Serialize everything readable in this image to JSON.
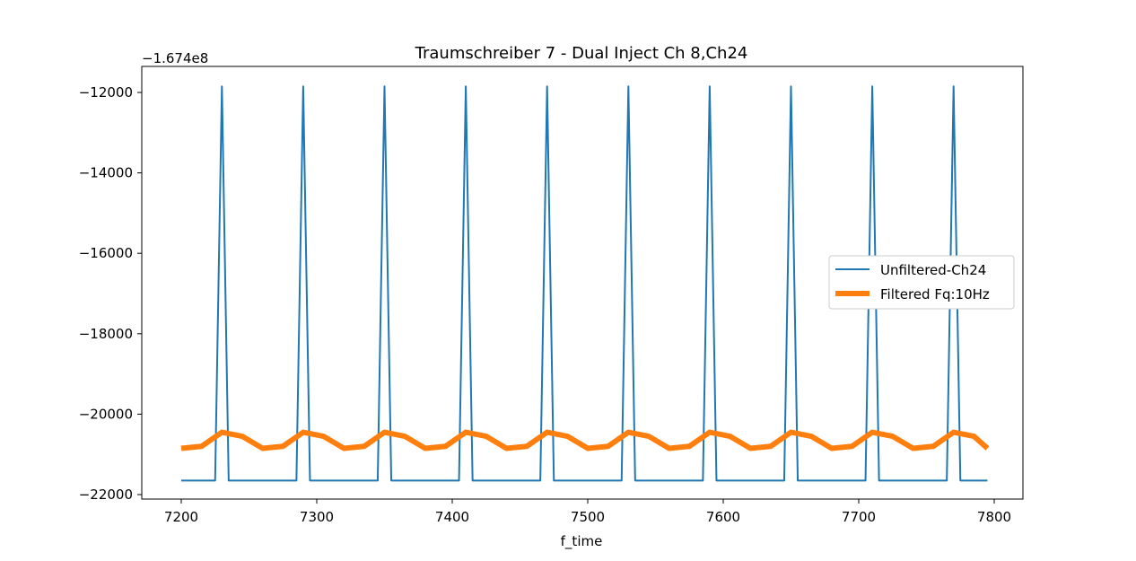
{
  "chart_data": {
    "type": "line",
    "title": "Traumschreiber 7 - Dual Inject Ch 8,Ch24",
    "xlabel": "f_time",
    "ylabel": "",
    "offset_text": "−1.674e8",
    "xlim": [
      7200,
      7800
    ],
    "ylim": [
      -22000,
      -12000
    ],
    "x_ticks": [
      7200,
      7300,
      7400,
      7500,
      7600,
      7700,
      7800
    ],
    "y_ticks": [
      -22000,
      -20000,
      -18000,
      -16000,
      -14000,
      -12000
    ],
    "x_tick_labels": [
      "7200",
      "7300",
      "7400",
      "7500",
      "7600",
      "7700",
      "7800"
    ],
    "y_tick_labels": [
      "−22000",
      "−20000",
      "−18000",
      "−16000",
      "−14000",
      "−12000"
    ],
    "legend_position": "center-right",
    "series": [
      {
        "name": "Unfiltered-Ch24",
        "color": "#1f77b4",
        "style": "thin",
        "x": [
          7200,
          7225,
          7230,
          7235,
          7285,
          7290,
          7295,
          7345,
          7350,
          7355,
          7405,
          7410,
          7415,
          7465,
          7470,
          7475,
          7525,
          7530,
          7535,
          7585,
          7590,
          7595,
          7645,
          7650,
          7655,
          7705,
          7710,
          7715,
          7765,
          7770,
          7775,
          7795
        ],
        "y": [
          -21650,
          -21650,
          -11850,
          -21650,
          -21650,
          -11850,
          -21650,
          -21650,
          -11850,
          -21650,
          -21650,
          -11850,
          -21650,
          -21650,
          -11850,
          -21650,
          -21650,
          -11850,
          -21650,
          -21650,
          -11850,
          -21650,
          -21650,
          -11850,
          -21650,
          -21650,
          -11850,
          -21650,
          -21650,
          -11850,
          -21650,
          -21650
        ]
      },
      {
        "name": "Filtered Fq:10Hz",
        "color": "#ff7f0e",
        "style": "thick",
        "x": [
          7200,
          7215,
          7230,
          7245,
          7260,
          7275,
          7290,
          7305,
          7320,
          7335,
          7350,
          7365,
          7380,
          7395,
          7410,
          7425,
          7440,
          7455,
          7470,
          7485,
          7500,
          7515,
          7530,
          7545,
          7560,
          7575,
          7590,
          7605,
          7620,
          7635,
          7650,
          7665,
          7680,
          7695,
          7710,
          7725,
          7740,
          7755,
          7770,
          7785,
          7795
        ],
        "y": [
          -20850,
          -20800,
          -20450,
          -20550,
          -20850,
          -20800,
          -20450,
          -20550,
          -20850,
          -20800,
          -20450,
          -20550,
          -20850,
          -20800,
          -20450,
          -20550,
          -20850,
          -20800,
          -20450,
          -20550,
          -20850,
          -20800,
          -20450,
          -20550,
          -20850,
          -20800,
          -20450,
          -20550,
          -20850,
          -20800,
          -20450,
          -20550,
          -20850,
          -20800,
          -20450,
          -20550,
          -20850,
          -20800,
          -20450,
          -20550,
          -20850
        ]
      }
    ]
  }
}
